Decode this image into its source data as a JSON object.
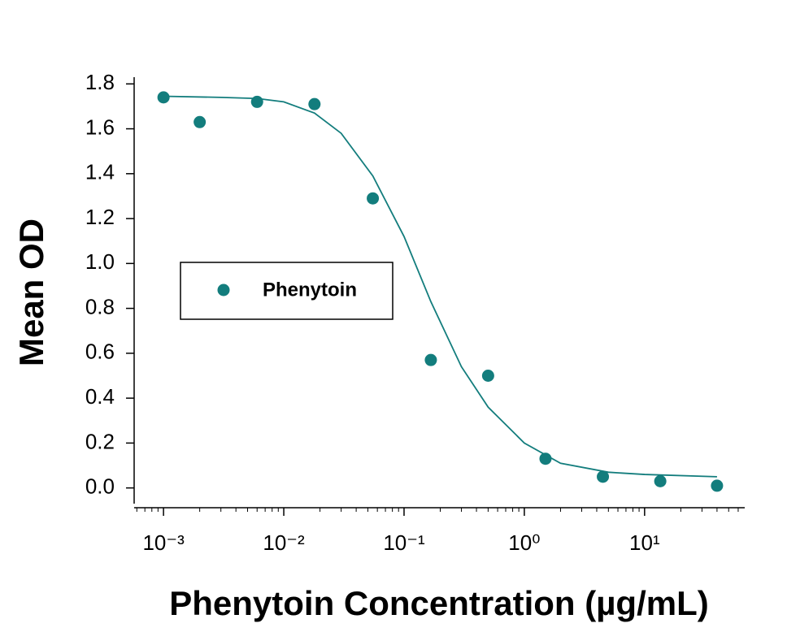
{
  "chart_data": {
    "type": "scatter",
    "xlabel": "Phenytoin Concentration (µg/mL)",
    "ylabel": "Mean OD",
    "xscale": "log",
    "xlim": [
      0.00057,
      68
    ],
    "ylim": [
      -0.07,
      1.83
    ],
    "xticks": [
      {
        "value": 0.001,
        "label": "10⁻³"
      },
      {
        "value": 0.01,
        "label": "10⁻²"
      },
      {
        "value": 0.1,
        "label": "10⁻¹"
      },
      {
        "value": 1,
        "label": "10⁰"
      },
      {
        "value": 10,
        "label": "10¹"
      }
    ],
    "yticks": [
      {
        "value": 0,
        "label": "0.0"
      },
      0.2,
      0.4,
      0.6,
      0.8,
      {
        "value": 1,
        "label": "1.0"
      },
      1.2,
      1.4,
      1.6,
      1.8
    ],
    "grid": false,
    "legend_position": "center-left",
    "series": [
      {
        "name": "Phenytoin",
        "color": "#137d7d",
        "x": [
          0.001,
          0.002,
          0.006,
          0.018,
          0.055,
          0.167,
          0.5,
          1.5,
          4.5,
          13.5,
          40
        ],
        "values": [
          1.74,
          1.63,
          1.72,
          1.71,
          1.29,
          0.57,
          0.5,
          0.13,
          0.05,
          0.03,
          0.01
        ]
      }
    ],
    "fit_line": {
      "color": "#137d7d",
      "x": [
        0.001,
        0.003,
        0.006,
        0.01,
        0.018,
        0.03,
        0.055,
        0.1,
        0.167,
        0.3,
        0.5,
        1,
        2,
        5,
        10,
        40
      ],
      "values": [
        1.745,
        1.74,
        1.735,
        1.72,
        1.67,
        1.58,
        1.39,
        1.12,
        0.83,
        0.54,
        0.36,
        0.2,
        0.11,
        0.07,
        0.06,
        0.05
      ]
    }
  }
}
